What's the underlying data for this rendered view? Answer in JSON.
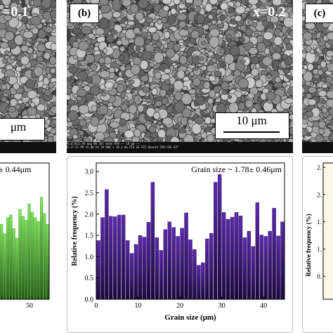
{
  "panels": {
    "a": {
      "x_label": "=0.1",
      "scale_text": "μm"
    },
    "b": {
      "letter": "(b)",
      "x_label": "x=0.2",
      "scale_text": "10 μm",
      "databar_line1": "8/3/2021   HV    mag    WD    det    mode    HFW   —— 10 μm ——",
      "databar_line2": "4:17:25 PM   15.00 kV   10 000 x   10.2 mm   ETD   SE   FEI Quanta 250 FEG VIT"
    },
    "c": {
      "letter": "(c)"
    }
  },
  "chart_data": [
    {
      "type": "bar",
      "panel": "left (cropped)",
      "annotation_fragment": "± 0.44μm",
      "x_ticks": [
        "50"
      ],
      "bar_color": "#5fd13a"
    },
    {
      "type": "bar",
      "panel": "middle",
      "annotation": "Grain size ~ 1.78± 0.46μm",
      "xlabel": "Grain size (μm)",
      "ylabel": "Relative frequency (%)",
      "xlim": [
        0,
        45
      ],
      "ylim": [
        0,
        3.2
      ],
      "x_ticks": [
        0,
        10,
        20,
        30,
        40
      ],
      "y_ticks": [
        "0.0",
        "0.5",
        "1.0",
        "1.5",
        "2.0",
        "2.5",
        "3.0"
      ],
      "bar_color": "#4b1d91",
      "x": [
        1,
        2,
        3,
        4,
        5,
        6,
        7,
        8,
        9,
        10,
        11,
        12,
        13,
        14,
        15,
        16,
        17,
        18,
        19,
        20,
        21,
        22,
        23,
        24,
        25,
        26,
        27,
        28,
        29,
        30,
        31,
        32,
        33,
        34,
        35,
        36,
        37,
        38,
        39,
        40,
        41,
        42,
        43,
        44,
        45
      ],
      "values": [
        1.38,
        1.92,
        2.58,
        1.95,
        1.94,
        1.98,
        1.98,
        1.38,
        1.08,
        1.29,
        1.5,
        1.46,
        1.81,
        2.75,
        1.45,
        1.15,
        1.64,
        1.82,
        1.69,
        1.48,
        1.67,
        2.03,
        1.4,
        1.17,
        0.8,
        0.86,
        1.42,
        1.55,
        2.75,
        2.93,
        2.04,
        1.88,
        1.93,
        2.04,
        1.96,
        1.45,
        1.6,
        1.24,
        2.27,
        1.51,
        1.48,
        1.6,
        2.14,
        1.49,
        1.82
      ]
    },
    {
      "type": "bar",
      "panel": "right (cropped)",
      "ylabel": "Relative frequency (%)",
      "y_ticks": [
        "2.",
        "2.",
        "1.",
        "1.",
        "0."
      ]
    }
  ]
}
